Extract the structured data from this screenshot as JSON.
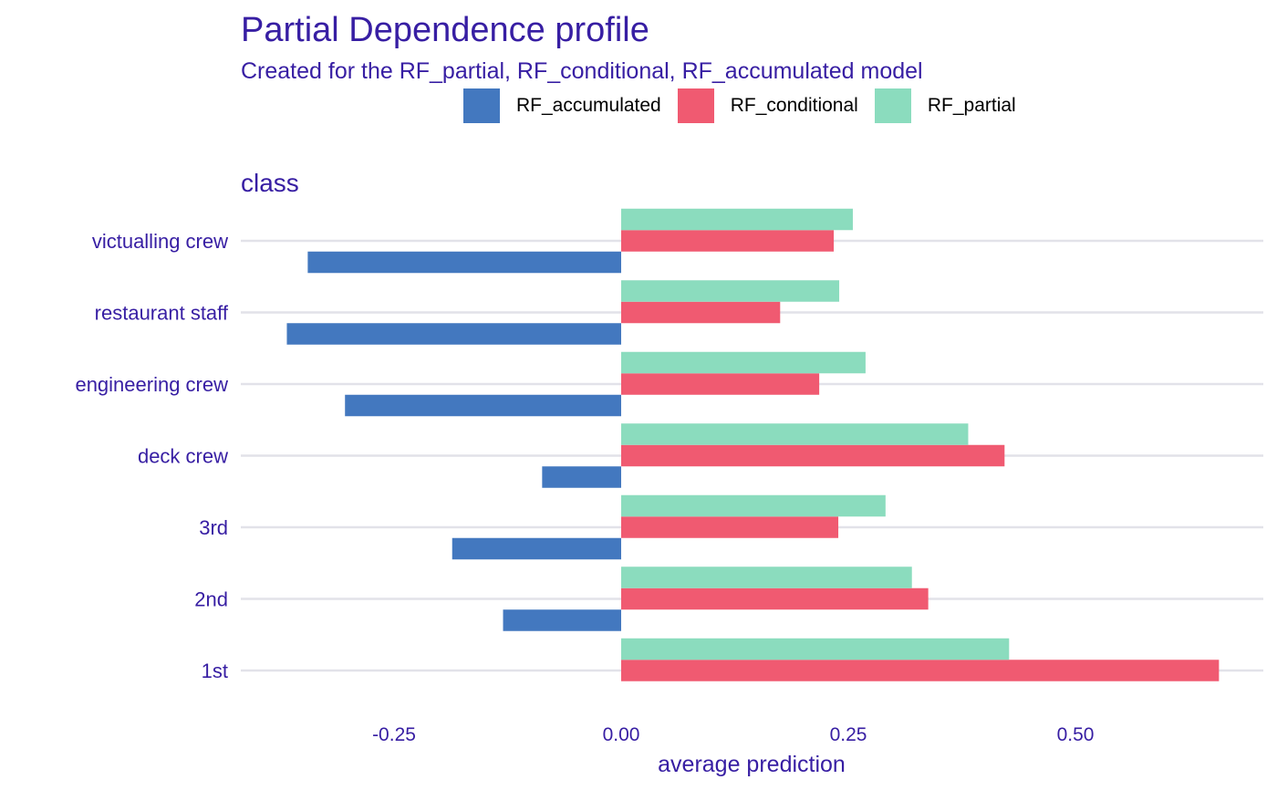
{
  "chart_data": {
    "type": "bar",
    "orientation": "horizontal",
    "title": "Partial Dependence profile",
    "subtitle": "Created for the RF_partial, RF_conditional, RF_accumulated model",
    "facet_label": "class",
    "xlabel": "average prediction",
    "ylabel": "",
    "xlim": [
      -0.42,
      0.68
    ],
    "x_ticks": [
      -0.25,
      0.0,
      0.25,
      0.5
    ],
    "x_tick_labels": [
      "-0.25",
      "0.00",
      "0.25",
      "0.50"
    ],
    "categories": [
      "victualling crew",
      "restaurant staff",
      "engineering crew",
      "deck crew",
      "3rd",
      "2nd",
      "1st"
    ],
    "series": [
      {
        "name": "RF_accumulated",
        "color": "#4378bf",
        "values": [
          -0.345,
          -0.368,
          -0.304,
          -0.087,
          -0.186,
          -0.13,
          0.0
        ]
      },
      {
        "name": "RF_conditional",
        "color": "#f05a71",
        "values": [
          0.234,
          0.175,
          0.218,
          0.422,
          0.239,
          0.338,
          0.658
        ]
      },
      {
        "name": "RF_partial",
        "color": "#8bdcbe",
        "values": [
          0.255,
          0.24,
          0.269,
          0.382,
          0.291,
          0.32,
          0.427
        ]
      }
    ],
    "legend_position": "top",
    "grid": true
  }
}
